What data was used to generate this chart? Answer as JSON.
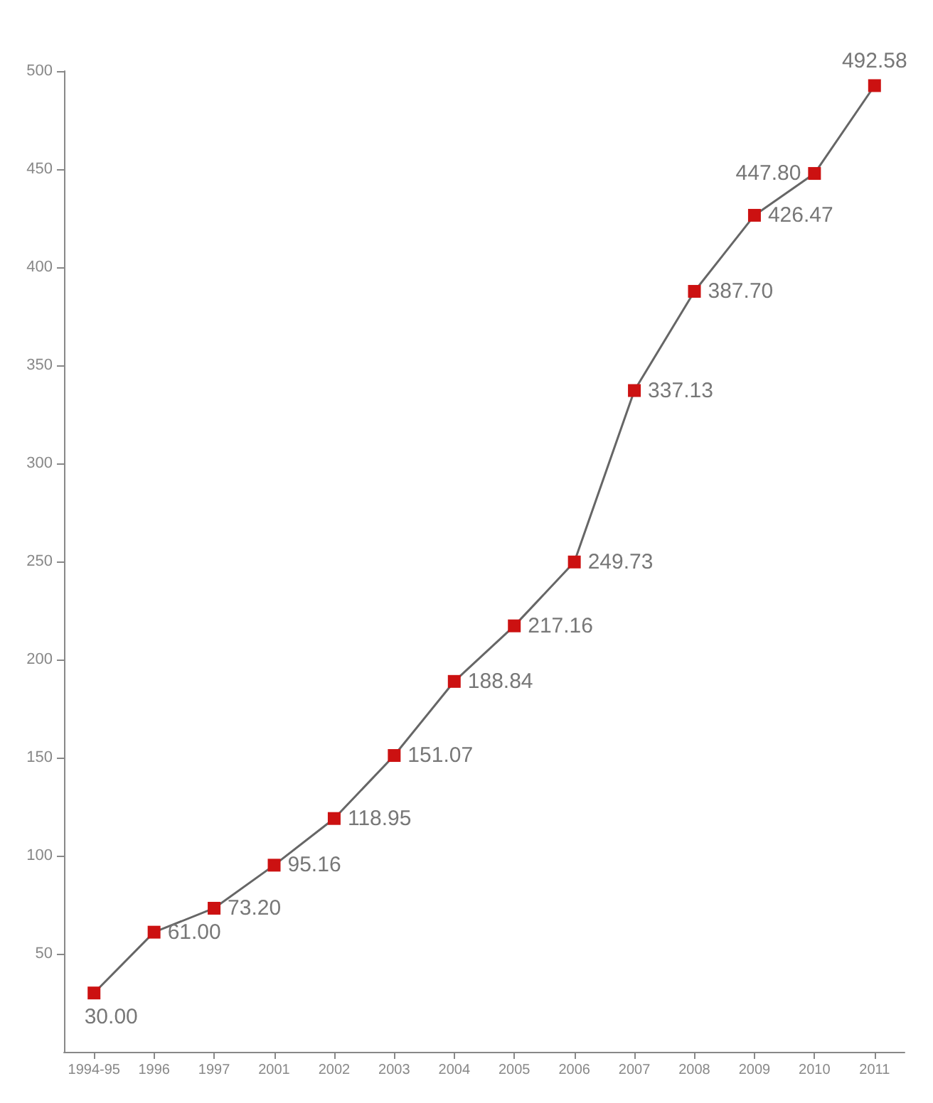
{
  "chart_data": {
    "type": "line",
    "categories": [
      "1994-95",
      "1996",
      "1997",
      "2001",
      "2002",
      "2003",
      "2004",
      "2005",
      "2006",
      "2007",
      "2008",
      "2009",
      "2010",
      "2011"
    ],
    "series": [
      {
        "color": "#cc1111",
        "values": [
          30.0,
          61.0,
          73.2,
          95.16,
          118.95,
          151.07,
          188.84,
          217.16,
          249.73,
          337.13,
          387.7,
          426.47,
          447.8,
          492.58
        ],
        "value_labels": [
          "30.00",
          "61.00",
          "73.20",
          "95.16",
          "118.95",
          "151.07",
          "188.84",
          "217.16",
          "249.73",
          "337.13",
          "387.70",
          "426.47",
          "447.80",
          "492.58"
        ]
      }
    ],
    "ylim": [
      0,
      500
    ],
    "yticks": [
      50,
      100,
      150,
      200,
      250,
      300,
      350,
      400,
      450,
      500
    ],
    "grid": false,
    "marker": "square",
    "line_style": "solid"
  }
}
